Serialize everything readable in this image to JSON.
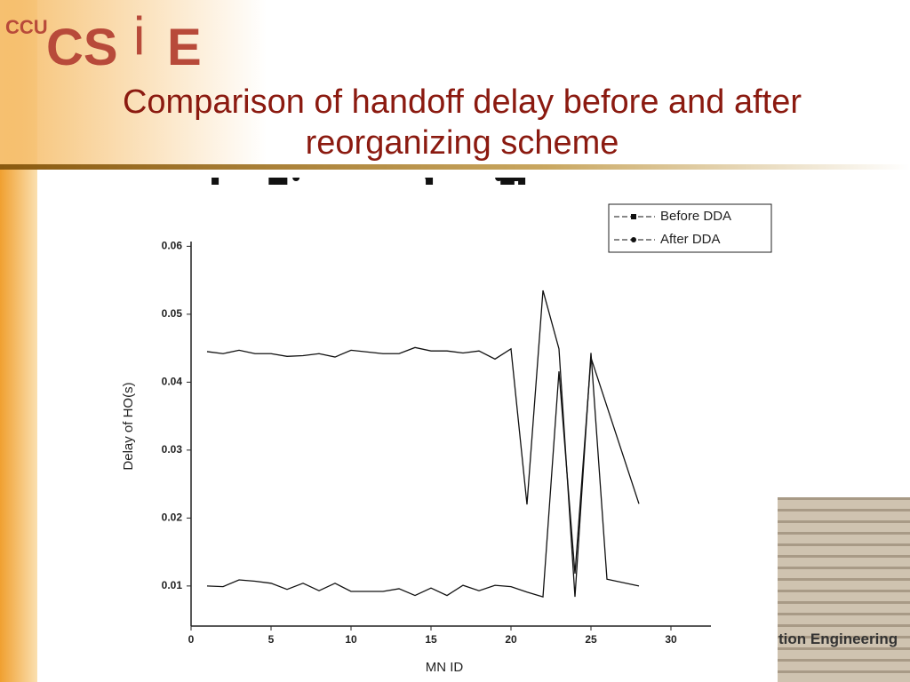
{
  "slide": {
    "logo_ccu": "CCU",
    "logo_cs": "CS",
    "logo_e": "E",
    "footer": "tion Engineering"
  },
  "chart_data": {
    "type": "line",
    "title": "Comparison of handoff delay before and after reorganizing scheme",
    "x_label": "MN ID",
    "y_label": "Delay of HO(s)",
    "xlim": [
      0,
      32.5
    ],
    "xticks": [
      0,
      5,
      10,
      15,
      20,
      25,
      30
    ],
    "ylim": [
      0.0041,
      0.0607
    ],
    "yticks": [
      0.01,
      0.02,
      0.03,
      0.04,
      0.05,
      0.06
    ],
    "legend": "upper right",
    "series": [
      {
        "name": "Before DDA",
        "color": "#111111",
        "marker": "square",
        "x": [
          1,
          2,
          3,
          4,
          5,
          6,
          7,
          8,
          9,
          10,
          12,
          13,
          14,
          15,
          16,
          17,
          18,
          19,
          20,
          21,
          22,
          23,
          24,
          25,
          26,
          28
        ],
        "values": [
          0.0445,
          0.0442,
          0.0447,
          0.0442,
          0.0442,
          0.0438,
          0.0439,
          0.0442,
          0.0437,
          0.0447,
          0.0442,
          0.0442,
          0.0451,
          0.0446,
          0.0446,
          0.0443,
          0.0446,
          0.0434,
          0.0449,
          0.022,
          0.0535,
          0.0449,
          0.0084,
          0.0443,
          0.011,
          0.01
        ]
      },
      {
        "name": "After DDA",
        "color": "#111111",
        "marker": "circle",
        "x": [
          1,
          2,
          3,
          4,
          5,
          6,
          7,
          8,
          9,
          10,
          12,
          13,
          14,
          15,
          16,
          17,
          18,
          19,
          20,
          21,
          22,
          23,
          24,
          25,
          28
        ],
        "values": [
          0.01,
          0.0099,
          0.0109,
          0.0107,
          0.0104,
          0.0095,
          0.0104,
          0.0093,
          0.0104,
          0.0092,
          0.0092,
          0.0096,
          0.0086,
          0.0097,
          0.0086,
          0.0101,
          0.0093,
          0.0101,
          0.0099,
          0.0091,
          0.0084,
          0.0416,
          0.0118,
          0.0436,
          0.0221
        ]
      }
    ]
  }
}
